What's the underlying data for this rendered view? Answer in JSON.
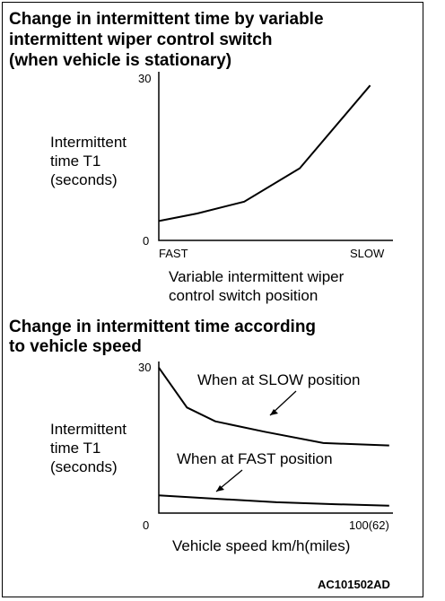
{
  "chart_data": [
    {
      "type": "line",
      "title_lines": [
        "Change in intermittent time by variable",
        "intermittent wiper control switch",
        "(when vehicle is stationary)"
      ],
      "ylabel_lines": [
        "Intermittent",
        "time T1",
        "(seconds)"
      ],
      "xlabel_lines": [
        "Variable intermittent wiper",
        "control switch position"
      ],
      "ylim": [
        0,
        30
      ],
      "y_ticks": [
        "0",
        "30"
      ],
      "xlim": [
        0,
        1
      ],
      "x_ticks": [
        {
          "pos": 0,
          "label": "FAST"
        },
        {
          "pos": 1,
          "label": "SLOW"
        }
      ],
      "grid": false,
      "series": [
        {
          "x": [
            0,
            0.18,
            0.4,
            0.66,
            0.99
          ],
          "y": [
            3.6,
            5.0,
            7.2,
            13.4,
            28.8
          ]
        }
      ]
    },
    {
      "type": "line",
      "title_lines": [
        "Change in intermittent time according",
        "to vehicle speed"
      ],
      "ylabel_lines": [
        "Intermittent",
        "time T1",
        "(seconds)"
      ],
      "xlabel": "Vehicle speed  km/h(miles)",
      "ylim": [
        0,
        30
      ],
      "y_ticks": [
        "0",
        "30"
      ],
      "xlim": [
        0,
        100
      ],
      "x_ticks": [
        {
          "pos": 0,
          "label": "0"
        },
        {
          "pos": 100,
          "label": "100(62)"
        }
      ],
      "grid": false,
      "series": [
        {
          "name": "When at SLOW position",
          "x": [
            0,
            12,
            24,
            45,
            70,
            98
          ],
          "y": [
            29.5,
            21.4,
            18.6,
            16.5,
            14.2,
            13.7
          ]
        },
        {
          "name": "When at FAST position",
          "x": [
            0,
            24,
            50,
            75,
            98
          ],
          "y": [
            3.6,
            2.9,
            2.2,
            1.8,
            1.5
          ]
        }
      ]
    }
  ],
  "footer": {
    "code": "AC101502AD"
  }
}
